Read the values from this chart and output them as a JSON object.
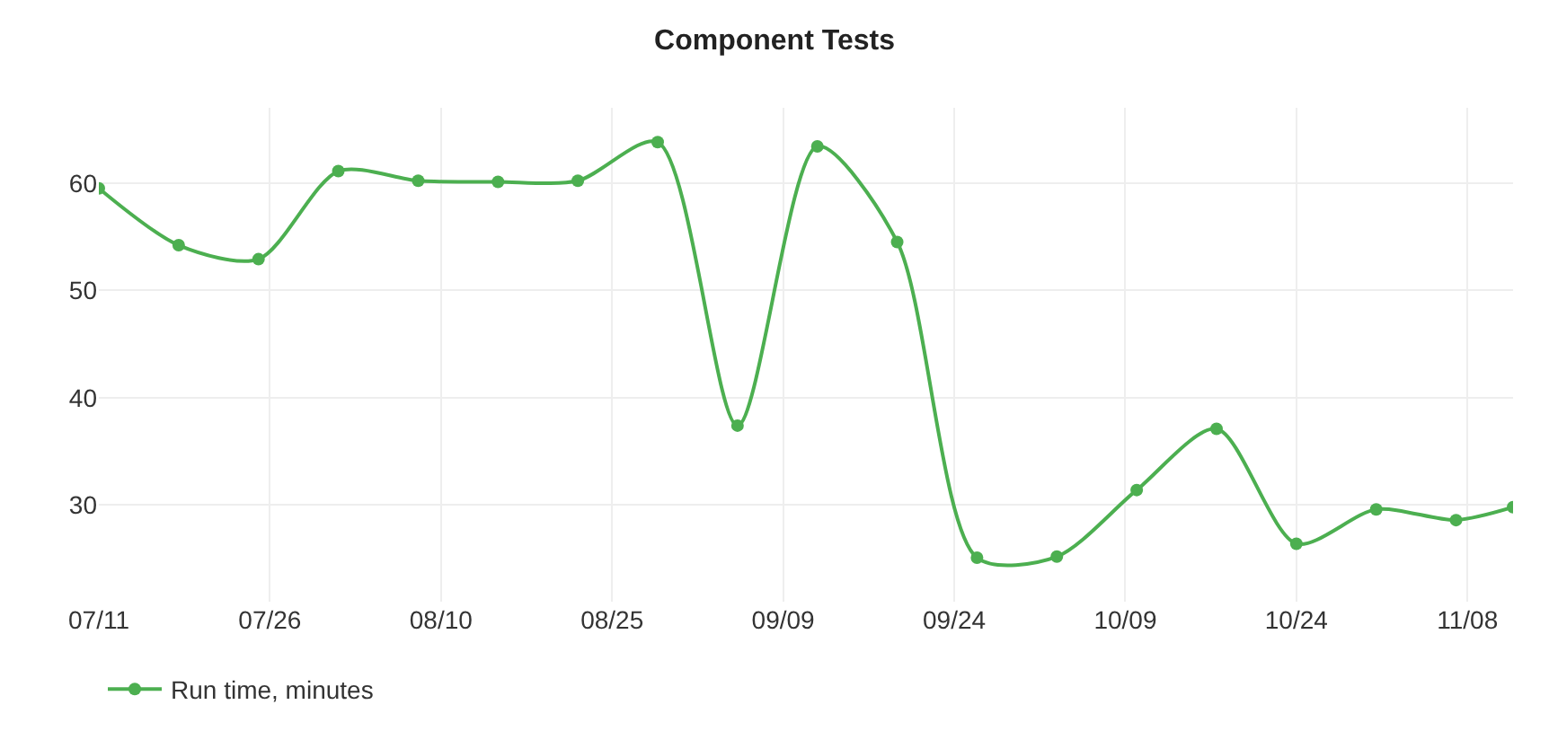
{
  "chart_data": {
    "type": "line",
    "title": "Component Tests",
    "x": [
      "--07-11",
      "--07-18",
      "--07-25",
      "--08-01",
      "--08-08",
      "--08-15",
      "--08-22",
      "--08-29",
      "--09-05",
      "--09-12",
      "--09-19",
      "--09-26",
      "--10-03",
      "--10-10",
      "--10-17",
      "--10-24",
      "--10-31",
      "--11-07",
      "--11-12"
    ],
    "series": [
      {
        "name": "Run time, minutes",
        "color": "#4caf50",
        "values": [
          59.5,
          54.2,
          52.9,
          61.1,
          60.2,
          60.1,
          60.2,
          63.8,
          37.4,
          63.4,
          54.5,
          25.1,
          25.2,
          31.4,
          37.1,
          26.4,
          29.6,
          28.6,
          29.8
        ]
      }
    ],
    "xlim": [
      "--07-11",
      "--11-12"
    ],
    "xticks": [
      {
        "value": "--07-11",
        "label": "07/11"
      },
      {
        "value": "--07-26",
        "label": "07/26"
      },
      {
        "value": "--08-10",
        "label": "08/10"
      },
      {
        "value": "--08-25",
        "label": "08/25"
      },
      {
        "value": "--09-09",
        "label": "09/09"
      },
      {
        "value": "--09-24",
        "label": "09/24"
      },
      {
        "value": "--10-09",
        "label": "10/09"
      },
      {
        "value": "--10-24",
        "label": "10/24"
      },
      {
        "value": "--11-08",
        "label": "11/08"
      }
    ],
    "ylim": [
      21,
      67
    ],
    "yticks": [
      30,
      40,
      50,
      60
    ],
    "grid": true,
    "legend": "bottom left",
    "marker": "circle",
    "line_style": "solid"
  }
}
